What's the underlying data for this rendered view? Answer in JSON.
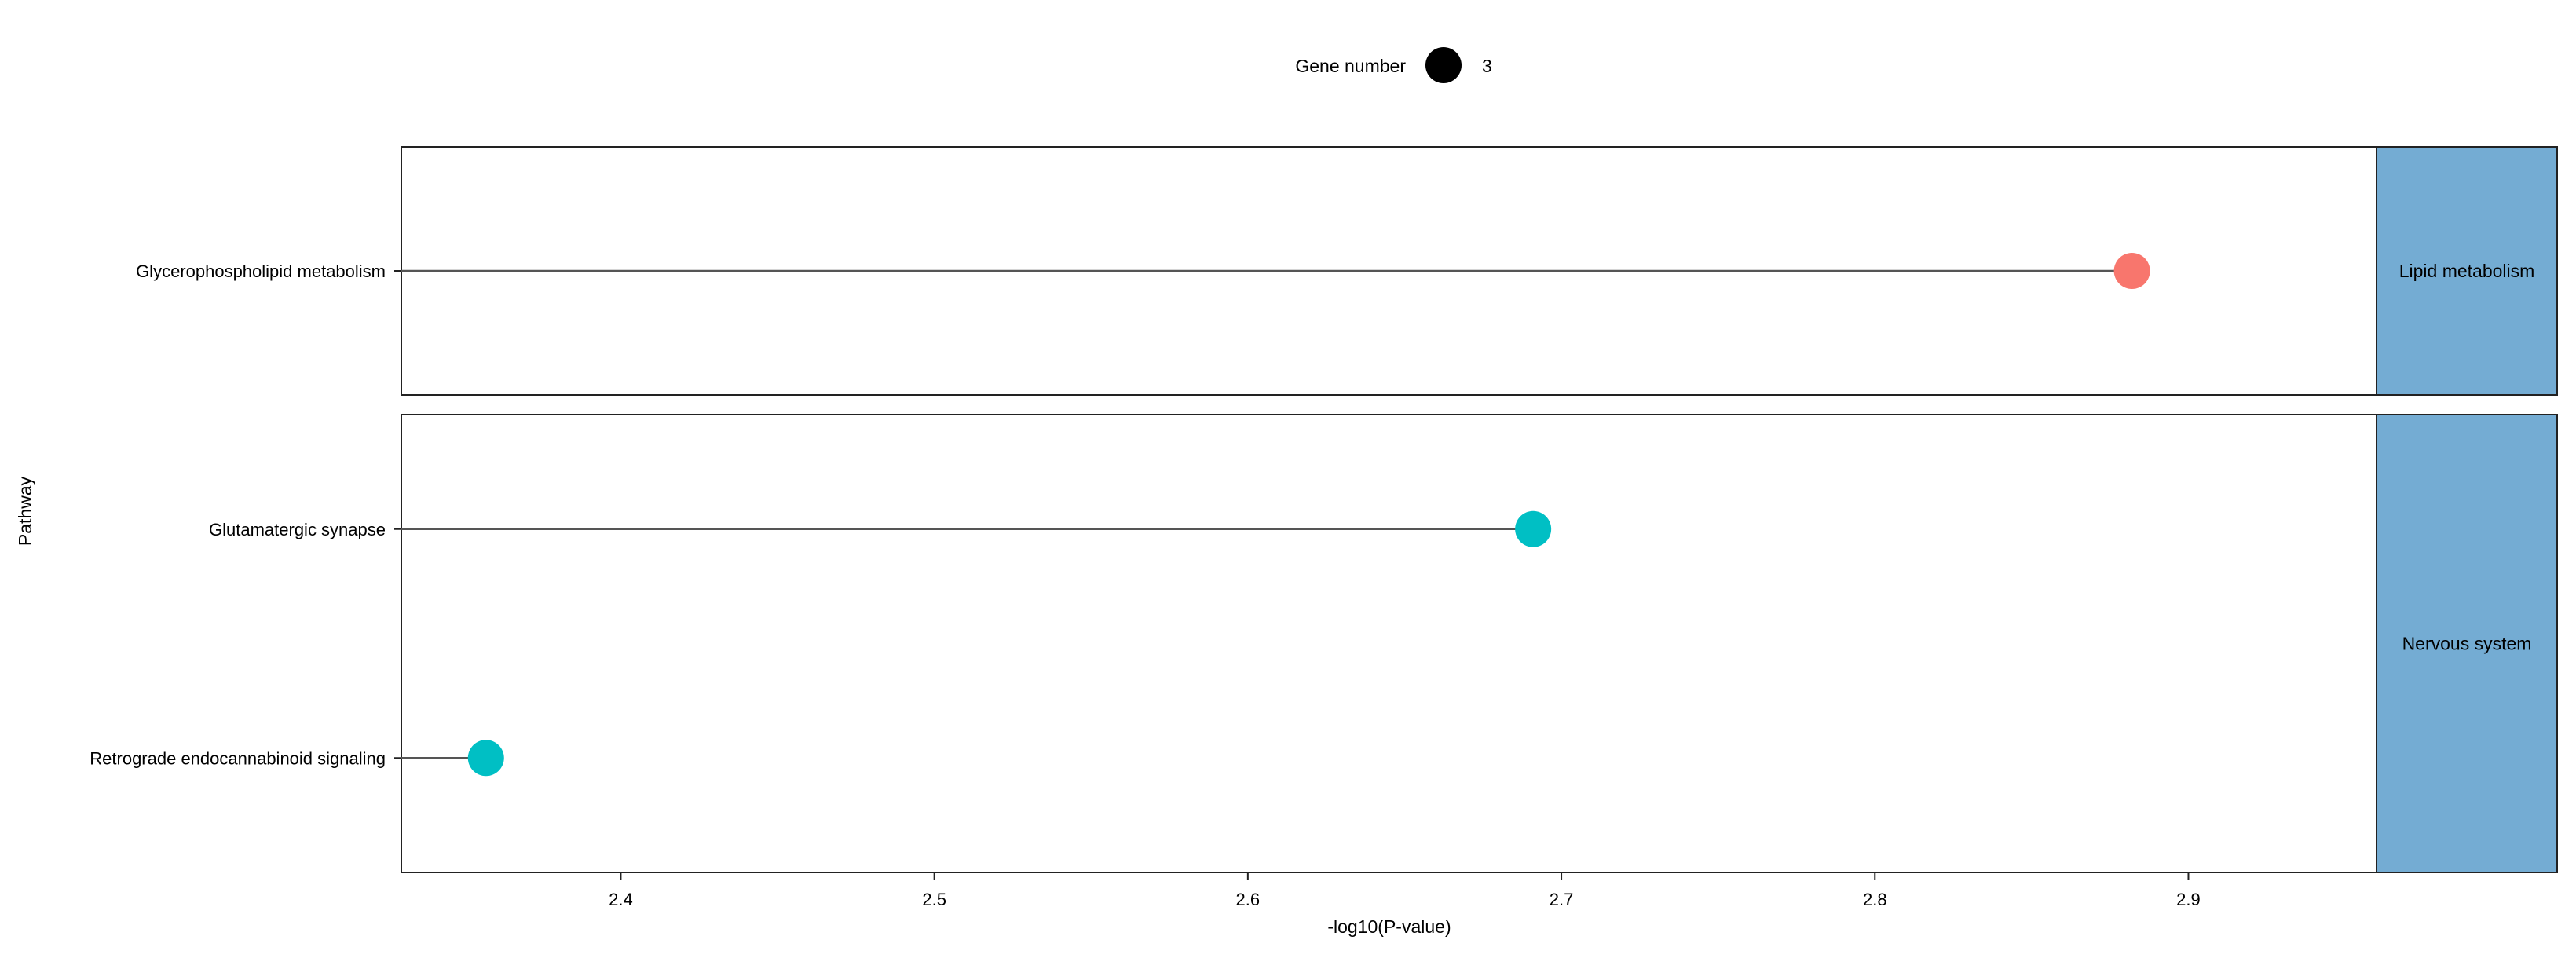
{
  "chart_data": {
    "type": "lollipop",
    "title": "",
    "xlabel": "-log10(P-value)",
    "ylabel": "Pathway",
    "xlim": [
      2.33,
      2.96
    ],
    "xticks": [
      2.4,
      2.5,
      2.6,
      2.7,
      2.8,
      2.9
    ],
    "xtick_labels": [
      "2.4",
      "2.5",
      "2.6",
      "2.7",
      "2.8",
      "2.9"
    ],
    "grid": false,
    "legend": {
      "title": "Gene number",
      "placement": "top-center",
      "entries": [
        {
          "label": "3",
          "color": "#000000"
        }
      ]
    },
    "facets": [
      {
        "label": "Lipid metabolism",
        "strip_color": "#74acd3",
        "points": [
          {
            "pathway": "Glycerophospholipid metabolism",
            "x": 2.882,
            "gene_number": 3,
            "color": "#f8766d"
          }
        ]
      },
      {
        "label": "Nervous system",
        "strip_color": "#74acd3",
        "points": [
          {
            "pathway": "Glutamatergic synapse",
            "x": 2.691,
            "gene_number": 3,
            "color": "#00bfc4"
          },
          {
            "pathway": "Retrograde endocannabinoid signaling",
            "x": 2.357,
            "gene_number": 3,
            "color": "#00bfc4"
          }
        ]
      }
    ]
  }
}
